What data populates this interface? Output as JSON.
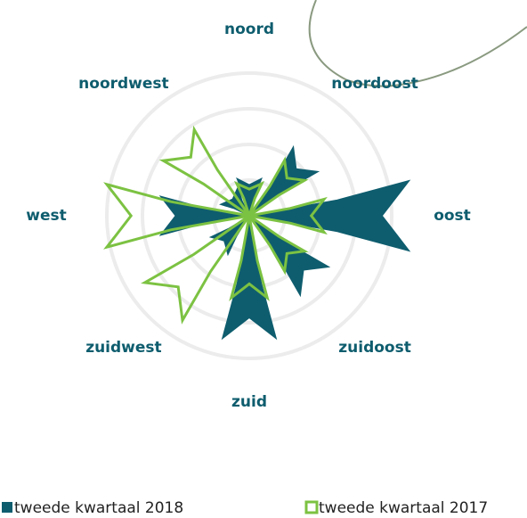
{
  "chart_data": {
    "type": "radar-arrows",
    "categories": [
      "noord",
      "noordoost",
      "oost",
      "zuidoost",
      "zuid",
      "zuidwest",
      "west",
      "noordwest"
    ],
    "rlim": [
      0,
      5
    ],
    "rgrid": [
      1,
      2,
      3,
      4
    ],
    "series": [
      {
        "name": "tweede kwartaal 2018",
        "color": "#0e5d6e",
        "fill": true,
        "values": [
          1.05,
          2.25,
          4.5,
          2.6,
          3.45,
          1.2,
          2.5,
          0.8
        ]
      },
      {
        "name": "tweede kwartaal 2017",
        "color": "#7cc242",
        "fill": false,
        "values": [
          0.9,
          1.8,
          2.1,
          1.8,
          2.3,
          3.4,
          4.0,
          2.8
        ]
      }
    ]
  }
}
